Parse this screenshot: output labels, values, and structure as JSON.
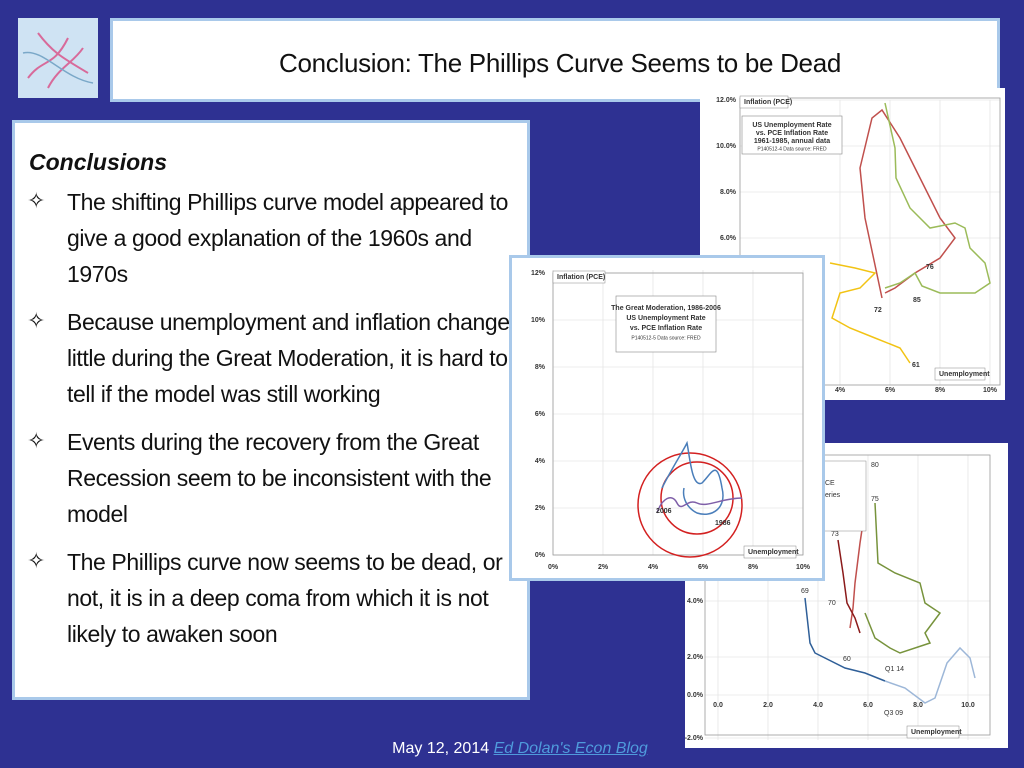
{
  "header": {
    "title": "Conclusion: The Phillips Curve Seems to be Dead"
  },
  "conclusions": {
    "heading": "Conclusions",
    "bullets": [
      "The shifting Phillips curve model appeared to give a good explanation of the 1960s and 1970s",
      "Because unemployment and inflation changed little during the Great Moderation, it is hard to tell if the model was still working",
      "Events during the recovery from the Great Recession seem to be inconsistent with the model",
      "The Phillips curve now seems to be dead, or if not, it is in a deep coma from which it is not likely to awaken soon"
    ]
  },
  "charts": [
    {
      "y_label": "Inflation (PCE)",
      "x_label": "Unemployment",
      "legend_box": [
        "US Unemployment Rate",
        "vs. PCE Inflation Rate",
        "1961-1985,  annual data",
        "P140512-4 Data source: FRED"
      ],
      "yticks": [
        "12.0%",
        "10.0%",
        "8.0%",
        "6.0%"
      ],
      "xticks": [
        "4%",
        "6%",
        "8%",
        "10%"
      ],
      "point_labels": [
        "76",
        "85",
        "72",
        "61"
      ]
    },
    {
      "y_label": "Inflation (PCE)",
      "x_label": "Unemployment",
      "legend_box": [
        "The Great Moderation, 1986-2006",
        "US Unemployment Rate",
        "vs. PCE Inflation Rate",
        "P140512-5 Data source: FRED"
      ],
      "yticks": [
        "12%",
        "10%",
        "8%",
        "6%",
        "4%",
        "2%",
        "0%"
      ],
      "xticks": [
        "0%",
        "2%",
        "4%",
        "6%",
        "8%",
        "10%"
      ],
      "point_labels": [
        "2006",
        "1986"
      ]
    },
    {
      "x_label": "Unemployment",
      "legend_box": [
        "CE",
        "eries"
      ],
      "yticks": [
        "4.0%",
        "2.0%",
        "0.0%",
        "-2.0%"
      ],
      "xticks": [
        "0.0",
        "2.0",
        "4.0",
        "6.0",
        "8.0",
        "10.0"
      ],
      "point_labels": [
        "80",
        "75",
        "73",
        "70",
        "69",
        "60",
        "Q1 14",
        "Q3 09"
      ]
    }
  ],
  "footer": {
    "date": "May 12, 2014",
    "link": "Ed Dolan's Econ Blog"
  }
}
